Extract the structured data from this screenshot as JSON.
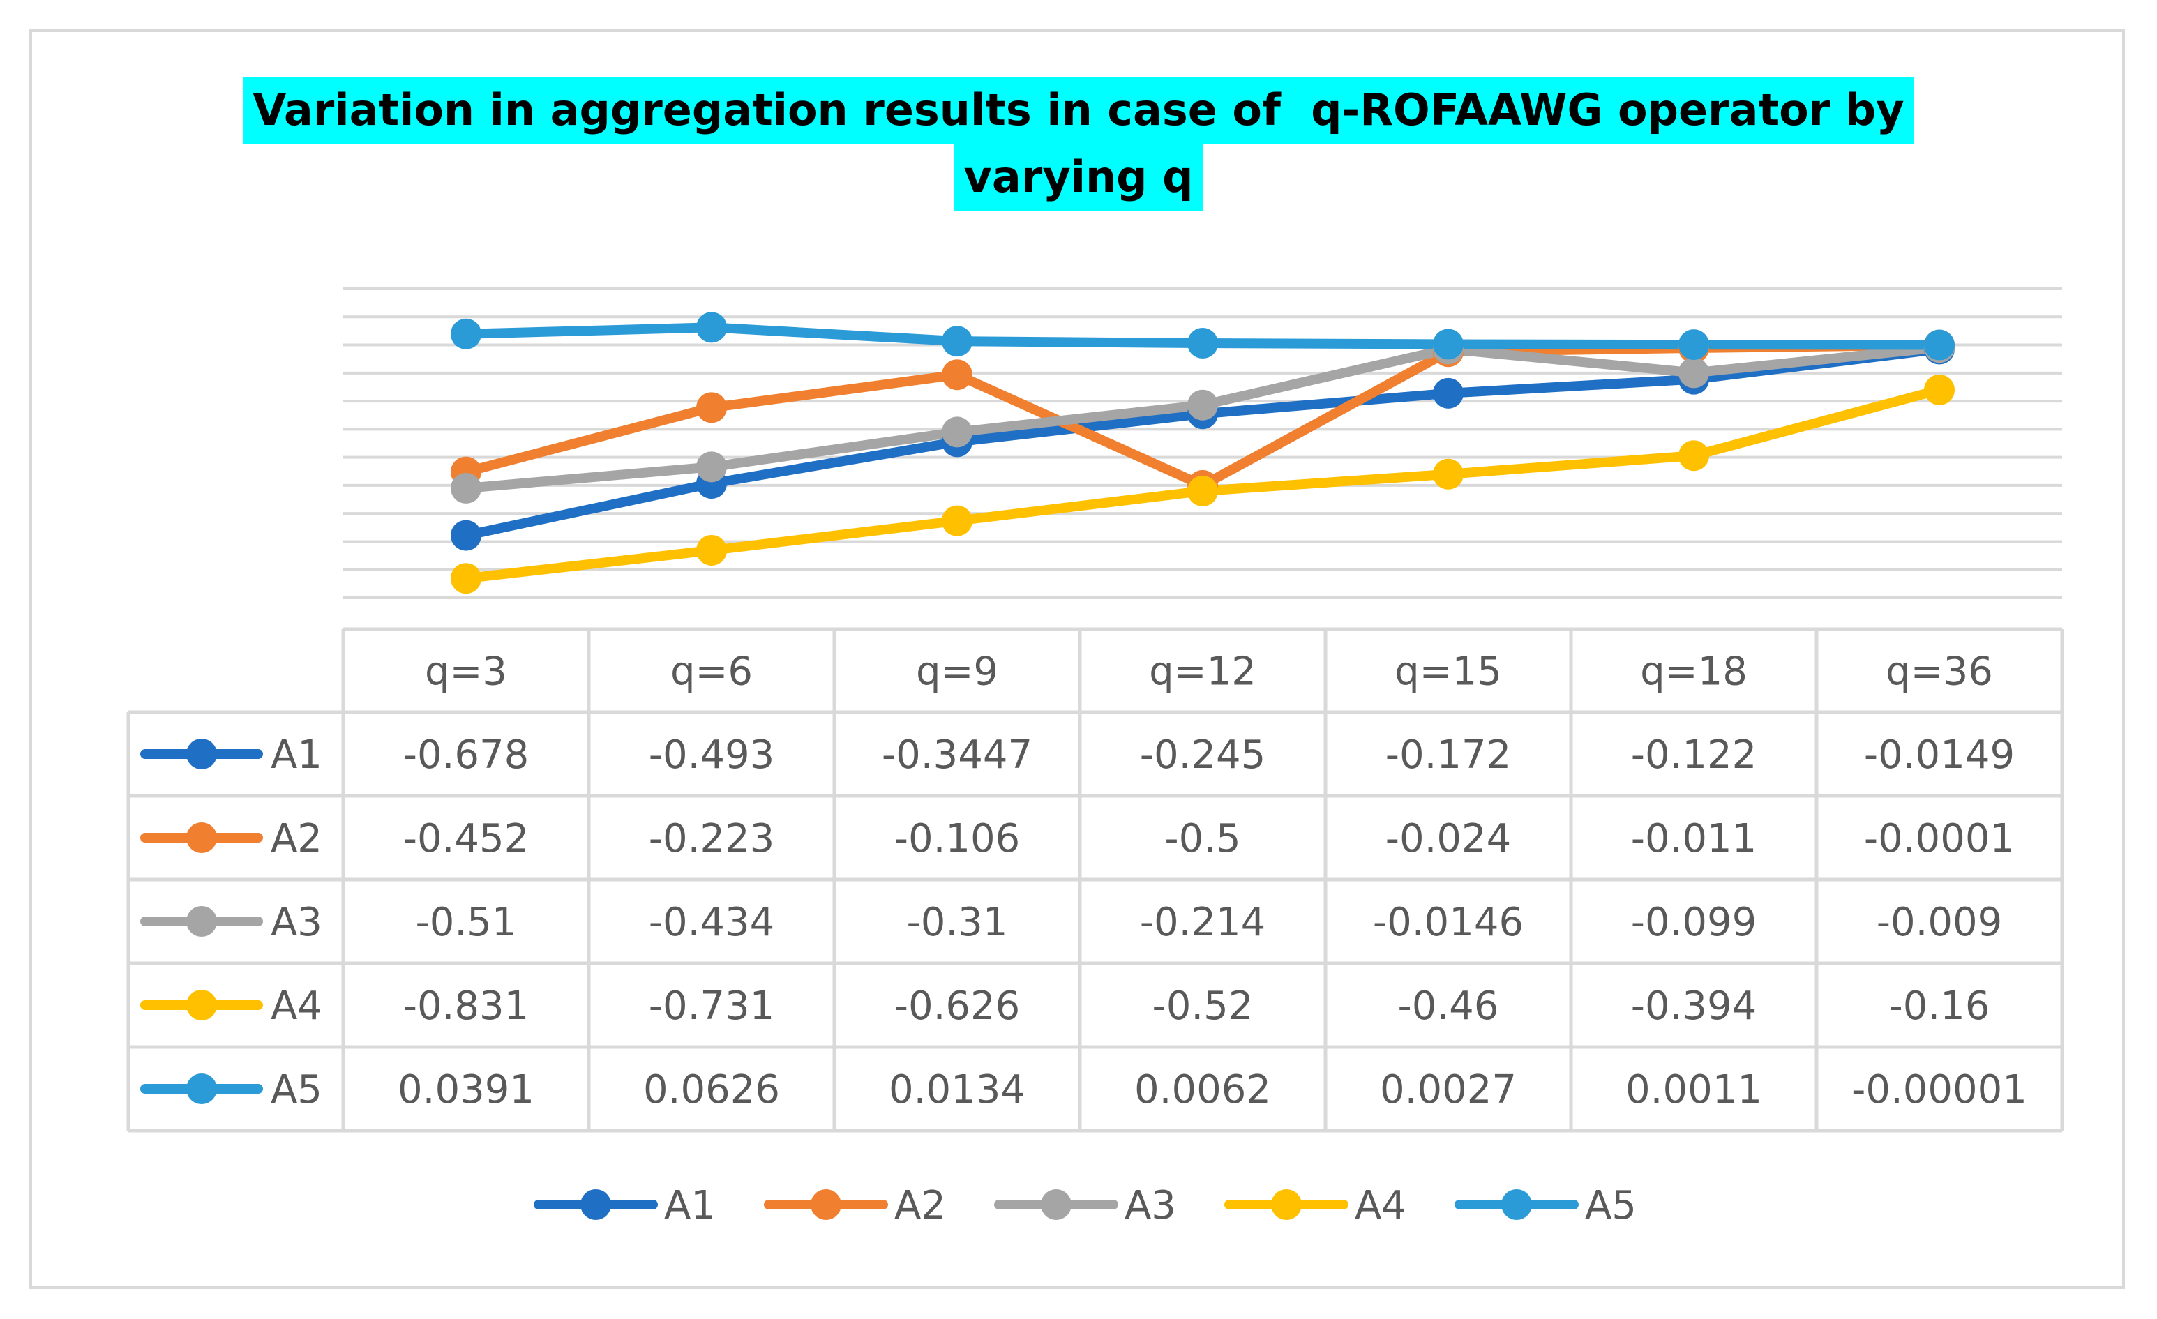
{
  "chart_data": {
    "type": "line",
    "title_line1": "Variation in aggregation results in case of  q-ROFAAWG operator by",
    "title_line2": "varying q",
    "categories": [
      "q=3",
      "q=6",
      "q=9",
      "q=12",
      "q=15",
      "q=18",
      "q=36"
    ],
    "series": [
      {
        "name": "A1",
        "color": "#1f6fc5",
        "values": [
          -0.678,
          -0.493,
          -0.3447,
          -0.245,
          -0.172,
          -0.122,
          -0.0149
        ],
        "labels": [
          "-0.678",
          "-0.493",
          "-0.3447",
          "-0.245",
          "-0.172",
          "-0.122",
          "-0.0149"
        ]
      },
      {
        "name": "A2",
        "color": "#f07f2f",
        "values": [
          -0.452,
          -0.223,
          -0.106,
          -0.5,
          -0.024,
          -0.011,
          -0.0001
        ],
        "labels": [
          "-0.452",
          "-0.223",
          "-0.106",
          "-0.5",
          "-0.024",
          "-0.011",
          "-0.0001"
        ]
      },
      {
        "name": "A3",
        "color": "#a5a5a5",
        "values": [
          -0.51,
          -0.434,
          -0.31,
          -0.214,
          -0.0146,
          -0.099,
          -0.009
        ],
        "labels": [
          "-0.51",
          "-0.434",
          "-0.31",
          "-0.214",
          "-0.0146",
          "-0.099",
          "-0.009"
        ]
      },
      {
        "name": "A4",
        "color": "#ffc000",
        "values": [
          -0.831,
          -0.731,
          -0.626,
          -0.52,
          -0.46,
          -0.394,
          -0.16
        ],
        "labels": [
          "-0.831",
          "-0.731",
          "-0.626",
          "-0.52",
          "-0.46",
          "-0.394",
          "-0.16"
        ]
      },
      {
        "name": "A5",
        "color": "#2b9bd8",
        "values": [
          0.0391,
          0.0626,
          0.0134,
          0.0062,
          0.0027,
          0.0011,
          -1e-05
        ],
        "labels": [
          "0.0391",
          "0.0626",
          "0.0134",
          "0.0062",
          "0.0027",
          "0.0011",
          "-0.00001"
        ]
      }
    ],
    "ylim": [
      -0.9,
      0.2
    ],
    "grid": true,
    "legend": "bottom",
    "data_table": true
  }
}
